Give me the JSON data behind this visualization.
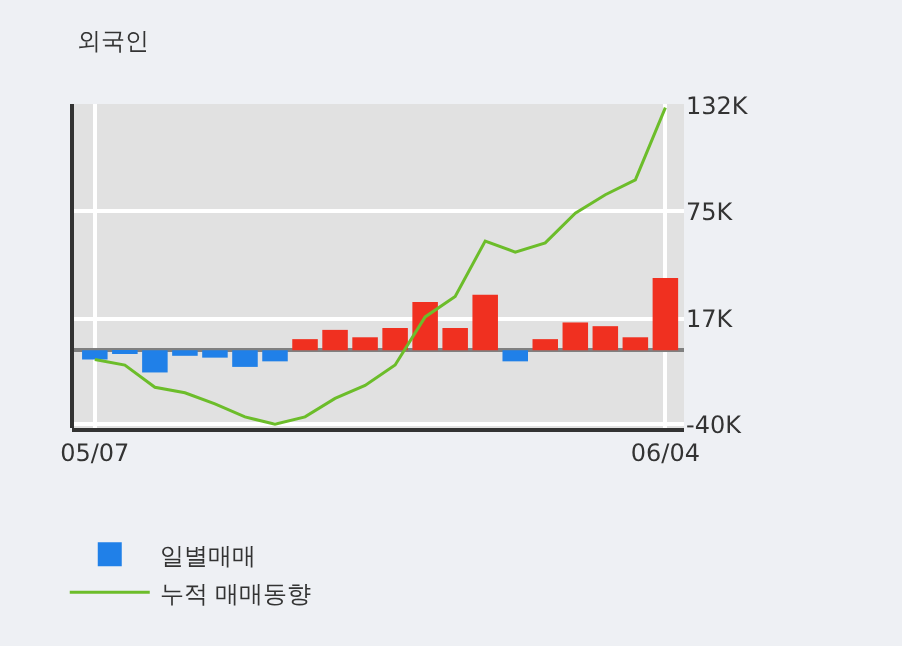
{
  "chart_data": {
    "type": "bar",
    "title": "외국인",
    "categories": [
      "05/07",
      null,
      null,
      null,
      null,
      null,
      null,
      null,
      null,
      null,
      null,
      null,
      null,
      null,
      null,
      null,
      null,
      null,
      null,
      "06/04"
    ],
    "series": [
      {
        "name": "일별매매",
        "colors": [
          "#2080e8",
          "#2080e8",
          "#2080e8",
          "#2080e8",
          "#2080e8",
          "#2080e8",
          "#2080e8",
          "#f03020",
          "#f03020",
          "#f03020",
          "#f03020",
          "#f03020",
          "#f03020",
          "#f03020",
          "#2080e8",
          "#f03020",
          "#f03020",
          "#f03020",
          "#f03020",
          "#f03020"
        ],
        "values": [
          -5,
          -2,
          -12,
          -3,
          -4,
          -9,
          -6,
          6,
          11,
          7,
          12,
          26,
          12,
          30,
          -6,
          6,
          15,
          13,
          7,
          39
        ]
      },
      {
        "name": "누적 매매동향",
        "type": "line",
        "color": "#6cbd2a",
        "values": [
          -5,
          -8,
          -20,
          -23,
          -29,
          -36,
          -40,
          -36,
          -26,
          -19,
          -8,
          18,
          29,
          59,
          53,
          58,
          74,
          84,
          92,
          131
        ]
      }
    ],
    "ylim": [
      -42,
      133
    ],
    "yticks": [
      {
        "value": 132,
        "label": "132K"
      },
      {
        "value": 75,
        "label": "75K"
      },
      {
        "value": 17,
        "label": "17K"
      },
      {
        "value": -40,
        "label": "-40K"
      }
    ],
    "grid": true,
    "legend": "bottom"
  }
}
